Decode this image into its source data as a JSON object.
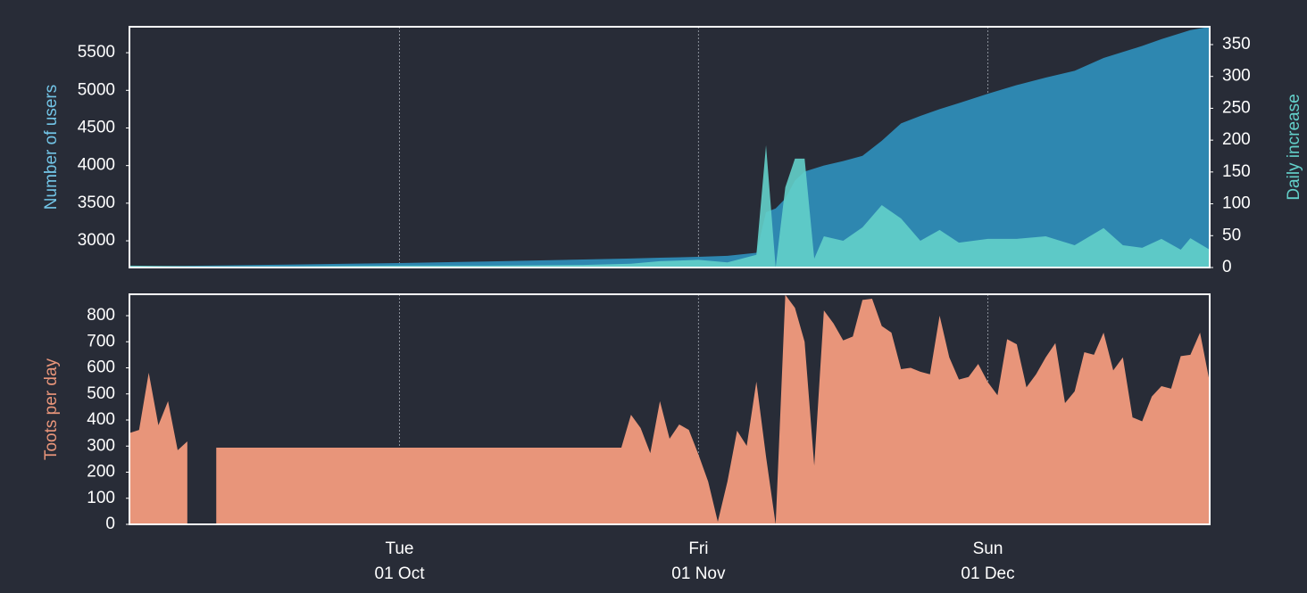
{
  "chart_data": [
    {
      "type": "area",
      "x": [
        "03 Sep",
        "10 Sep",
        "20 Sep",
        "01 Oct",
        "10 Oct",
        "20 Oct",
        "25 Oct",
        "28 Oct",
        "01 Nov",
        "04 Nov",
        "07 Nov",
        "08 Nov",
        "09 Nov",
        "10 Nov",
        "11 Nov",
        "12 Nov",
        "13 Nov",
        "14 Nov",
        "16 Nov",
        "18 Nov",
        "20 Nov",
        "22 Nov",
        "24 Nov",
        "26 Nov",
        "28 Nov",
        "01 Dec",
        "04 Dec",
        "07 Dec",
        "10 Dec",
        "13 Dec",
        "15 Dec",
        "17 Dec",
        "19 Dec",
        "21 Dec",
        "22 Dec",
        "24 Dec"
      ],
      "xlim": [
        "03 Sep",
        "24 Dec"
      ],
      "xticks": [
        "01 Oct",
        "01 Nov",
        "01 Dec"
      ],
      "ylim": [
        2645,
        5845
      ],
      "yticks": [
        3000,
        3500,
        4000,
        4500,
        5000,
        5500
      ],
      "y2lim": [
        0,
        378
      ],
      "y2ticks": [
        0,
        50,
        100,
        150,
        200,
        250,
        300,
        350
      ],
      "grid": true,
      "series": [
        {
          "name": "Number of users",
          "color": "#2e87b0",
          "label_color": "#72c4e6",
          "values": [
            2660,
            2668,
            2685,
            2704,
            2725,
            2752,
            2765,
            2775,
            2787,
            2800,
            2840,
            3380,
            3430,
            3560,
            3800,
            3920,
            3960,
            4000,
            4060,
            4130,
            4330,
            4560,
            4660,
            4750,
            4830,
            4955,
            5070,
            5170,
            5260,
            5430,
            5510,
            5590,
            5680,
            5760,
            5800,
            5845
          ]
        },
        {
          "name": "Daily increase",
          "color": "#63d0ca",
          "label_color": "#63d0ca",
          "axis": "y2",
          "values": [
            3,
            2,
            2,
            3,
            3,
            4,
            6,
            10,
            12,
            8,
            20,
            192,
            0,
            126,
            171,
            171,
            14,
            49,
            42,
            63,
            98,
            77,
            42,
            59,
            39,
            45,
            45,
            49,
            35,
            62,
            35,
            31,
            45,
            28,
            46,
            28
          ]
        }
      ]
    },
    {
      "type": "area",
      "x": [
        "03 Sep",
        "04 Sep",
        "05 Sep",
        "06 Sep",
        "07 Sep",
        "08 Sep",
        "09 Sep",
        "10 Sep",
        "11 Sep",
        "12 Sep",
        "24 Oct",
        "25 Oct",
        "26 Oct",
        "27 Oct",
        "28 Oct",
        "29 Oct",
        "30 Oct",
        "31 Oct",
        "01 Nov",
        "02 Nov",
        "03 Nov",
        "04 Nov",
        "05 Nov",
        "06 Nov",
        "07 Nov",
        "08 Nov",
        "09 Nov",
        "10 Nov",
        "11 Nov",
        "12 Nov",
        "13 Nov",
        "14 Nov",
        "15 Nov",
        "16 Nov",
        "17 Nov",
        "18 Nov",
        "19 Nov",
        "20 Nov",
        "21 Nov",
        "22 Nov",
        "23 Nov",
        "24 Nov",
        "25 Nov",
        "26 Nov",
        "27 Nov",
        "28 Nov",
        "29 Nov",
        "30 Nov",
        "01 Dec",
        "02 Dec",
        "03 Dec",
        "04 Dec",
        "05 Dec",
        "06 Dec",
        "07 Dec",
        "08 Dec",
        "09 Dec",
        "10 Dec",
        "11 Dec",
        "12 Dec",
        "13 Dec",
        "14 Dec",
        "15 Dec",
        "16 Dec",
        "17 Dec",
        "18 Dec",
        "19 Dec",
        "20 Dec",
        "21 Dec",
        "22 Dec",
        "23 Dec",
        "24 Dec"
      ],
      "xlim": [
        "03 Sep",
        "24 Dec"
      ],
      "xticks": [
        "01 Oct",
        "01 Nov",
        "01 Dec"
      ],
      "xtick_weekdays": [
        "Tue",
        "Fri",
        "Sun"
      ],
      "ylim": [
        0,
        882
      ],
      "yticks": [
        0,
        100,
        200,
        300,
        400,
        500,
        600,
        700,
        800
      ],
      "grid": true,
      "series": [
        {
          "name": "Toots per day",
          "color": "#e8957a",
          "label_color": "#e8957a",
          "values": [
            350,
            362,
            581,
            380,
            472,
            284,
            318,
            null,
            null,
            294,
            294,
            420,
            369,
            273,
            472,
            328,
            383,
            362,
            267,
            164,
            10,
            164,
            359,
            301,
            547,
            260,
            0,
            880,
            830,
            700,
            225,
            820,
            770,
            705,
            720,
            860,
            865,
            760,
            735,
            595,
            600,
            585,
            575,
            800,
            640,
            555,
            565,
            615,
            545,
            495,
            710,
            690,
            525,
            575,
            640,
            695,
            465,
            510,
            660,
            650,
            735,
            590,
            640,
            410,
            395,
            490,
            530,
            520,
            645,
            650,
            735,
            545
          ]
        }
      ]
    }
  ]
}
